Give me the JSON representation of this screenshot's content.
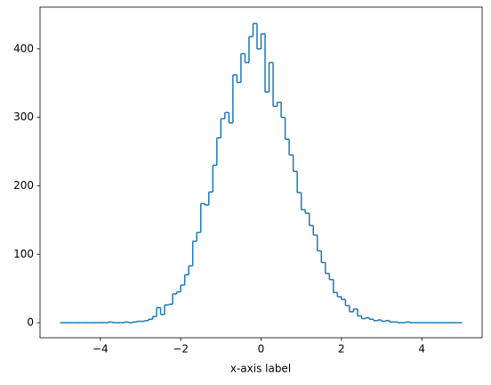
{
  "chart_data": {
    "type": "histogram",
    "histtype": "step",
    "xlabel": "x-axis label",
    "color": "#1f77b4",
    "bins": [
      -5,
      -4.9,
      -4.8,
      -4.7,
      -4.6,
      -4.5,
      -4.4,
      -4.3,
      -4.2,
      -4.1,
      -4,
      -3.9,
      -3.8,
      -3.7,
      -3.6,
      -3.5,
      -3.4,
      -3.3,
      -3.2,
      -3.1,
      -3,
      -2.9,
      -2.8,
      -2.7,
      -2.6,
      -2.5,
      -2.4,
      -2.3,
      -2.2,
      -2.1,
      -2,
      -1.9,
      -1.8,
      -1.7,
      -1.6,
      -1.5,
      -1.4,
      -1.3,
      -1.2,
      -1.1,
      -1,
      -0.9,
      -0.8,
      -0.7,
      -0.6,
      -0.5,
      -0.4,
      -0.3,
      -0.2,
      -0.1,
      0,
      0.1,
      0.2,
      0.3,
      0.4,
      0.5,
      0.6,
      0.7,
      0.8,
      0.9,
      1,
      1.1,
      1.2,
      1.3,
      1.4,
      1.5,
      1.6,
      1.7,
      1.8,
      1.9,
      2,
      2.1,
      2.2,
      2.3,
      2.4,
      2.5,
      2.6,
      2.7,
      2.8,
      2.9,
      3,
      3.1,
      3.2,
      3.3,
      3.4,
      3.5,
      3.6,
      3.7,
      3.8,
      3.9,
      4,
      4.1,
      4.2,
      4.3,
      4.4,
      4.5,
      4.6,
      4.7,
      4.8,
      4.9,
      5
    ],
    "values": [
      0,
      0,
      0,
      0,
      0,
      0,
      0,
      0,
      0,
      0,
      0,
      0,
      1,
      0,
      0,
      0,
      1,
      0,
      1,
      2,
      2,
      3,
      5,
      9,
      22,
      12,
      26,
      27,
      42,
      45,
      55,
      70,
      83,
      119,
      132,
      174,
      172,
      191,
      230,
      270,
      298,
      307,
      292,
      362,
      351,
      393,
      380,
      418,
      437,
      400,
      422,
      337,
      380,
      316,
      322,
      300,
      268,
      245,
      221,
      190,
      165,
      160,
      142,
      128,
      105,
      88,
      72,
      63,
      44,
      38,
      34,
      25,
      16,
      20,
      10,
      6,
      7,
      5,
      3,
      4,
      2,
      3,
      1,
      1,
      0,
      0,
      1,
      0,
      0,
      0,
      0,
      0,
      0,
      0,
      0,
      0,
      0,
      0,
      0,
      0
    ],
    "xlim": [
      -5.5,
      5.5
    ],
    "ylim": [
      -22,
      461
    ],
    "xticks": [
      {
        "value": -4,
        "label": "−4"
      },
      {
        "value": -2,
        "label": "−2"
      },
      0,
      2,
      4
    ],
    "yticks": [
      0,
      100,
      200,
      300,
      400
    ]
  }
}
